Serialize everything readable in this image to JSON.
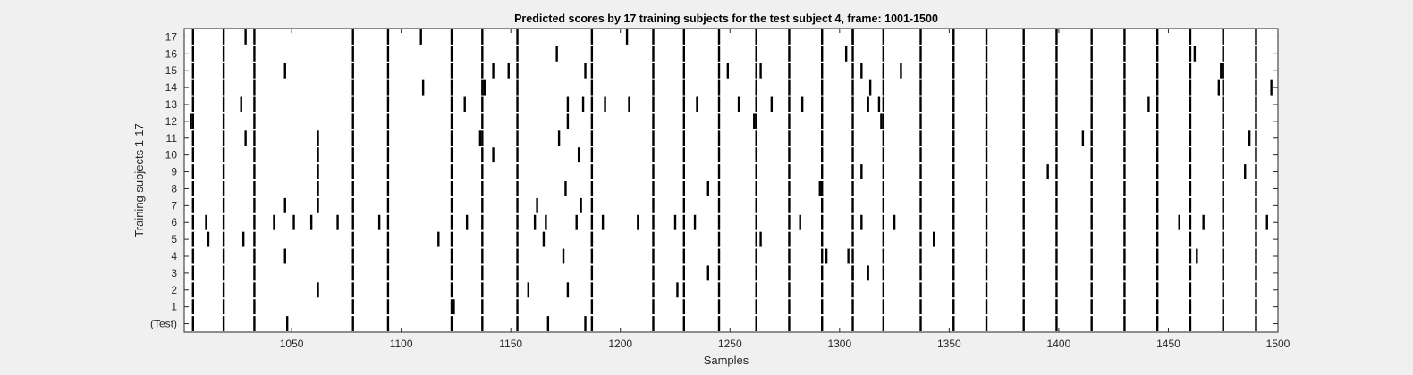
{
  "chart_data": {
    "type": "raster",
    "title": "Predicted scores by 17 training subjects for the test subject 4, frame: 1001-1500",
    "xlabel": "Samples",
    "ylabel": "Training subjects 1-17",
    "xlim": [
      1001,
      1500
    ],
    "xticks": [
      1050,
      1100,
      1150,
      1200,
      1250,
      1300,
      1350,
      1400,
      1450,
      1500
    ],
    "xtick_labels": [
      "1050",
      "1100",
      "1150",
      "1200",
      "1250",
      "1300",
      "1350",
      "1400",
      "1450",
      "1500"
    ],
    "rows": [
      "(Test)",
      "1",
      "2",
      "3",
      "4",
      "5",
      "6",
      "7",
      "8",
      "9",
      "10",
      "11",
      "12",
      "13",
      "14",
      "15",
      "16",
      "17"
    ],
    "grid": false,
    "background": "#ffffff",
    "figure_background": "#f0f0f0",
    "mark_color": "#000000",
    "common_events": [
      1005,
      1019,
      1033,
      1078,
      1094,
      1123,
      1137,
      1153,
      1187,
      1215,
      1229,
      1245,
      1262,
      1277,
      1292,
      1306,
      1320,
      1337,
      1352,
      1367,
      1384,
      1399,
      1415,
      1430,
      1445,
      1460,
      1475,
      1490
    ],
    "extra_events": {
      "(Test)": [
        1048,
        1167,
        1184
      ],
      "1": [
        1124
      ],
      "2": [
        1062,
        1158,
        1176,
        1226
      ],
      "3": [
        1240,
        1306,
        1313
      ],
      "4": [
        1047,
        1174,
        1294,
        1304,
        1463
      ],
      "5": [
        1012,
        1028,
        1117,
        1165,
        1187,
        1264,
        1343
      ],
      "6": [
        1011,
        1042,
        1051,
        1059,
        1071,
        1090,
        1130,
        1161,
        1166,
        1180,
        1192,
        1208,
        1225,
        1234,
        1282,
        1310,
        1325,
        1455,
        1466,
        1495
      ],
      "7": [
        1047,
        1062,
        1162,
        1182
      ],
      "8": [
        1062,
        1175,
        1240,
        1291
      ],
      "9": [
        1062,
        1310,
        1395,
        1485
      ],
      "10": [
        1062,
        1142,
        1181
      ],
      "11": [
        1029,
        1062,
        1136,
        1172,
        1411,
        1487
      ],
      "12": [
        1004,
        1176,
        1261,
        1319
      ],
      "13": [
        1027,
        1129,
        1176,
        1183,
        1193,
        1204,
        1235,
        1254,
        1269,
        1283,
        1313,
        1318,
        1441
      ],
      "14": [
        1110,
        1138,
        1314,
        1473,
        1497
      ],
      "15": [
        1047,
        1142,
        1149,
        1184,
        1249,
        1264,
        1310,
        1328,
        1474
      ],
      "16": [
        1171,
        1303,
        1462
      ],
      "17": [
        1029,
        1109,
        1203,
        1306
      ]
    }
  }
}
